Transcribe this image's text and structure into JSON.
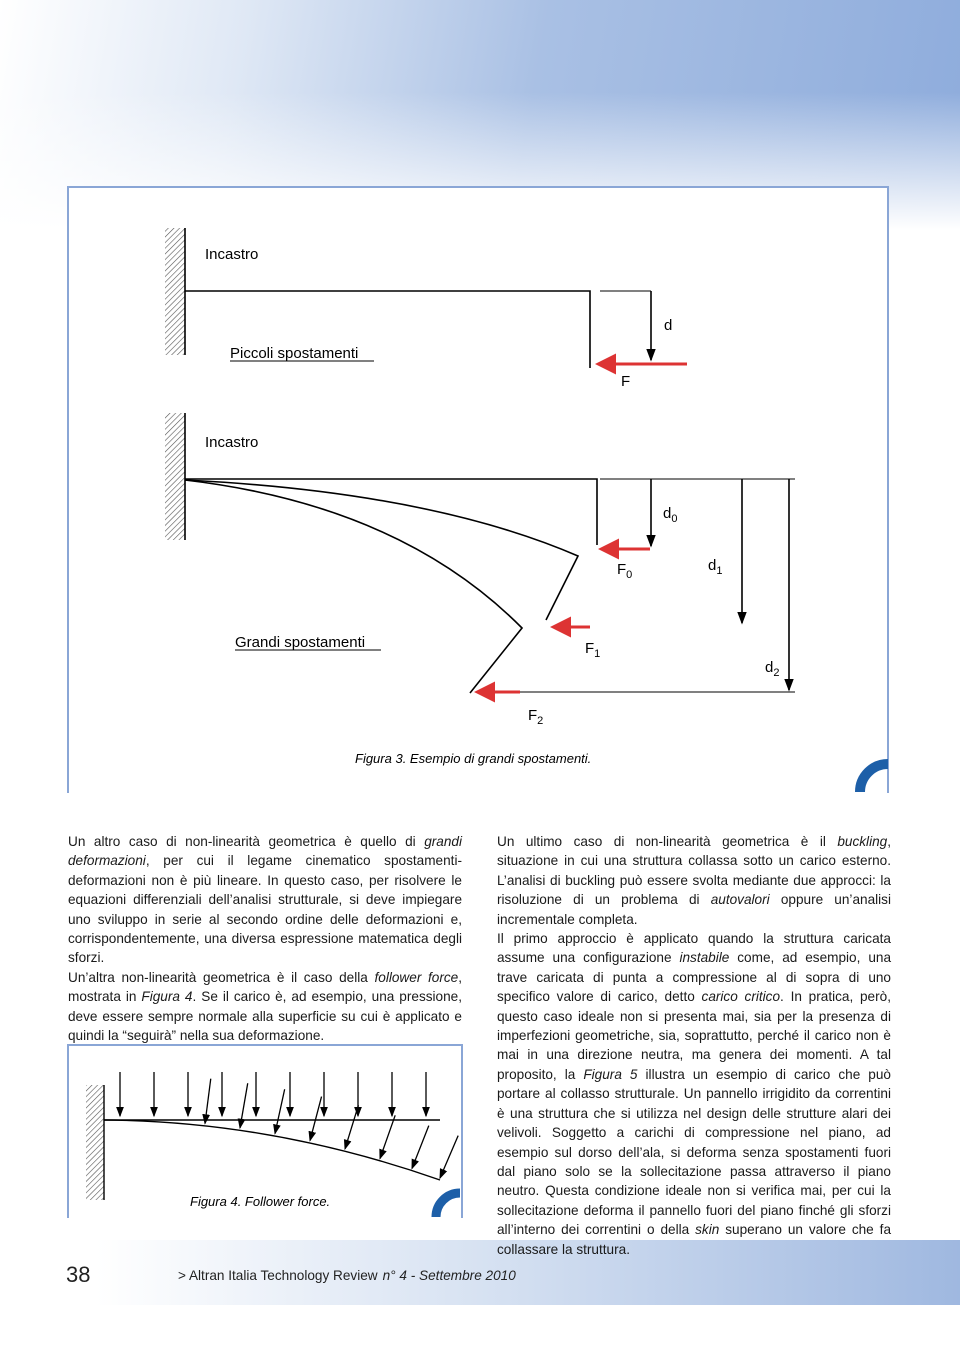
{
  "figure_3": {
    "top": {
      "wall_label": "Incastro",
      "title": "Piccoli spostamenti",
      "displacement": "d",
      "force": "F"
    },
    "bottom": {
      "wall_label": "Incastro",
      "title": "Grandi spostamenti",
      "displacements": [
        {
          "base": "d",
          "sub": "0"
        },
        {
          "base": "d",
          "sub": "1"
        },
        {
          "base": "d",
          "sub": "2"
        }
      ],
      "forces": [
        {
          "base": "F",
          "sub": "0"
        },
        {
          "base": "F",
          "sub": "1"
        },
        {
          "base": "F",
          "sub": "2"
        }
      ]
    },
    "caption": "Figura 3. Esempio di grandi spostamenti."
  },
  "left_column": [
    [
      {
        "t": "Un altro caso di non-linearità geometrica è quello di "
      },
      {
        "t": "grandi deformazioni",
        "i": true
      },
      {
        "t": ", per cui il legame cinematico spostamenti-deformazioni non è più lineare. In questo caso, per risolvere le equazioni differenziali dell’analisi strutturale, si deve impiegare uno sviluppo in serie al secondo ordine delle deformazioni e, corrispondentemente, una diversa espressione matematica degli sforzi."
      }
    ],
    [
      {
        "t": "Un’altra non-linearità geometrica è il caso della "
      },
      {
        "t": "follower force",
        "i": true
      },
      {
        "t": ", mostrata in "
      },
      {
        "t": "Figura 4",
        "i": true
      },
      {
        "t": ". Se il carico è, ad esempio, una pressione, deve essere sempre normale alla superficie su cui è applicato e quindi la “seguirà” nella sua deformazione."
      }
    ]
  ],
  "figure_4": {
    "caption": "Figura 4. Follower force."
  },
  "right_column": [
    [
      {
        "t": "Un ultimo caso di non-linearità geometrica è il "
      },
      {
        "t": "buckling",
        "i": true
      },
      {
        "t": ", situazione in cui una struttura collassa sotto un carico esterno. L’analisi di buckling può essere svolta mediante due approcci: la risoluzione di un problema di "
      },
      {
        "t": "autovalori",
        "i": true
      },
      {
        "t": " oppure un’analisi incrementale completa."
      }
    ],
    [
      {
        "t": "Il primo approccio è applicato quando la struttura caricata assume una configurazione "
      },
      {
        "t": "instabile",
        "i": true
      },
      {
        "t": " come, ad esempio, una trave caricata di punta a compressione al di sopra di uno specifico valore di carico, detto "
      },
      {
        "t": "carico critico",
        "i": true
      },
      {
        "t": ". In pratica, però, questo caso ideale non si presenta mai, sia per la presenza di imperfezioni geometriche, sia, soprattutto, perché il carico non è mai in una direzione neutra, ma genera dei momenti. A tal proposito, la "
      },
      {
        "t": "Figura 5",
        "i": true
      },
      {
        "t": " illustra un esempio di carico che può portare al collasso strutturale. Un pannello irrigidito da correntini è una struttura che si utilizza nel design delle strutture alari dei velivoli. Soggetto a carichi di compressione nel piano, ad esempio sul dorso dell’ala, si deforma senza spostamenti fuori dal piano solo se la sollecitazione passa attraverso il piano neutro. Questa condizione ideale non si verifica mai, per cui la sollecitazione deforma il pannello fuori del piano finché gli sforzi all’interno dei correntini o della "
      },
      {
        "t": "skin",
        "i": true
      },
      {
        "t": " superano un valore che fa collassare la struttura."
      }
    ]
  ],
  "footer": {
    "page_number": "38",
    "publication": "> Altran Italia Technology Review",
    "issue": "n° 4 - Settembre 2010"
  }
}
